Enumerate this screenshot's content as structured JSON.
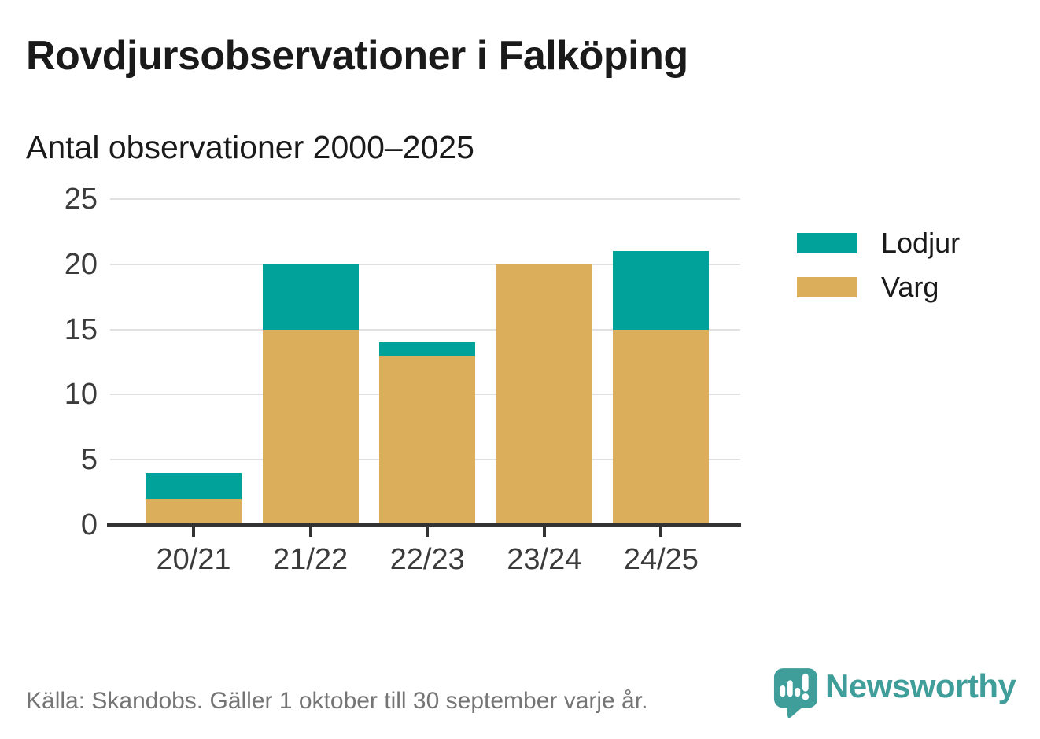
{
  "header": {
    "title": "Rovdjursobservationer i Falköping",
    "subtitle": "Antal observationer 2000–2025"
  },
  "chart_data": {
    "type": "bar",
    "stacked": true,
    "title": "Rovdjursobservationer i Falköping",
    "subtitle": "Antal observationer 2000–2025",
    "xlabel": "",
    "ylabel": "",
    "categories": [
      "20/21",
      "21/22",
      "22/23",
      "23/24",
      "24/25"
    ],
    "series": [
      {
        "name": "Varg",
        "color": "#dbae5c",
        "values": [
          2,
          15,
          13,
          20,
          15
        ]
      },
      {
        "name": "Lodjur",
        "color": "#00a29a",
        "values": [
          2,
          5,
          1,
          0,
          6
        ]
      }
    ],
    "totals": [
      4,
      20,
      14,
      20,
      21
    ],
    "ylim": [
      0,
      25
    ],
    "yticks": [
      0,
      5,
      10,
      15,
      20,
      25
    ],
    "grid": true,
    "legend_position": "right",
    "legend_order": [
      "Lodjur",
      "Varg"
    ]
  },
  "colors": {
    "lodjur": "#00a29a",
    "varg": "#dbae5c",
    "gridline": "#e0e0e0",
    "axis": "#333333",
    "text": "#1a1a1a",
    "tick_text": "#3b3b3b",
    "source_text": "#757575",
    "brand_teal": "#3f9d9a"
  },
  "footer": {
    "source": "Källa: Skandobs. Gäller 1 oktober till 30 september varje år.",
    "brand": "Newsworthy"
  }
}
